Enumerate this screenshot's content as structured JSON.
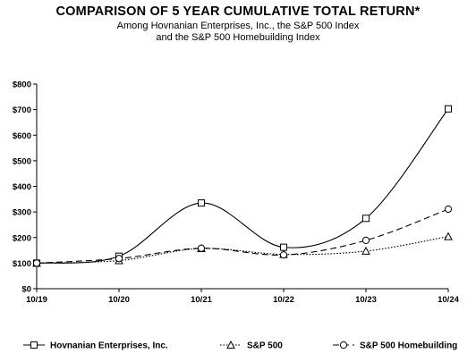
{
  "header": {
    "title": "COMPARISON OF 5 YEAR CUMULATIVE TOTAL RETURN*",
    "subtitle_line1": "Among Hovnanian Enterprises, Inc., the S&P 500 Index",
    "subtitle_line2": "and the S&P 500 Homebuilding Index"
  },
  "chart_data": {
    "type": "line",
    "title": "COMPARISON OF 5 YEAR CUMULATIVE TOTAL RETURN*",
    "categories": [
      "10/19",
      "10/20",
      "10/21",
      "10/22",
      "10/23",
      "10/24"
    ],
    "ylim": [
      0,
      800
    ],
    "yticks": [
      0,
      100,
      200,
      300,
      400,
      500,
      600,
      700,
      800
    ],
    "ytick_labels": [
      "$0",
      "$100",
      "$200",
      "$300",
      "$400",
      "$500",
      "$600",
      "$700",
      "$800"
    ],
    "grid": false,
    "legend_position": "bottom",
    "series": [
      {
        "name": "Hovnanian Enterprises, Inc.",
        "values": [
          100,
          127,
          335,
          162,
          275,
          703
        ],
        "marker": "square",
        "dash": "solid",
        "color": "#000000"
      },
      {
        "name": "S&P 500",
        "values": [
          100,
          110,
          157,
          134,
          147,
          204
        ],
        "marker": "triangle",
        "dash": "dotted",
        "color": "#000000"
      },
      {
        "name": "S&P 500 Homebuilding",
        "values": [
          100,
          118,
          158,
          132,
          189,
          311
        ],
        "marker": "circle",
        "dash": "dashed",
        "color": "#000000"
      }
    ]
  }
}
